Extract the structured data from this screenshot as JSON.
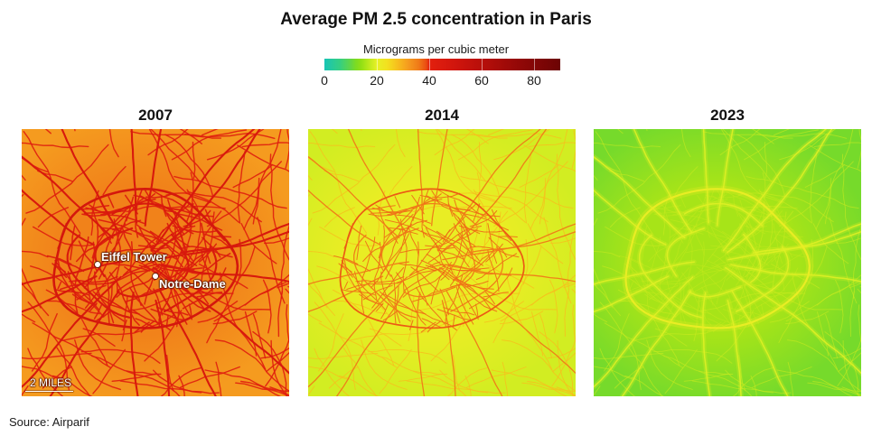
{
  "title": "Average PM 2.5 concentration in Paris",
  "legend": {
    "label": "Micrograms per cubic meter",
    "range": [
      0,
      90
    ],
    "ticks": [
      {
        "value": 0,
        "label": "0"
      },
      {
        "value": 20,
        "label": "20"
      },
      {
        "value": 40,
        "label": "40"
      },
      {
        "value": 60,
        "label": "60"
      },
      {
        "value": 80,
        "label": "80"
      }
    ],
    "color_stops": [
      {
        "value": 0,
        "color": "#18c4b6"
      },
      {
        "value": 6,
        "color": "#36cf80"
      },
      {
        "value": 10,
        "color": "#62d646"
      },
      {
        "value": 12,
        "color": "#7cdb22"
      },
      {
        "value": 14,
        "color": "#92df14"
      },
      {
        "value": 16,
        "color": "#aee619"
      },
      {
        "value": 18,
        "color": "#cbeb20"
      },
      {
        "value": 20,
        "color": "#e6f126"
      },
      {
        "value": 24,
        "color": "#f3e01f"
      },
      {
        "value": 28,
        "color": "#f7be1d"
      },
      {
        "value": 32,
        "color": "#f59b1f"
      },
      {
        "value": 36,
        "color": "#f07a18"
      },
      {
        "value": 39,
        "color": "#ea4a12"
      },
      {
        "value": 40,
        "color": "#e3200e"
      },
      {
        "value": 50,
        "color": "#d0150d"
      },
      {
        "value": 60,
        "color": "#b80f0a"
      },
      {
        "value": 70,
        "color": "#9e0a08"
      },
      {
        "value": 80,
        "color": "#840606"
      },
      {
        "value": 90,
        "color": "#6c0404"
      }
    ]
  },
  "panels": [
    {
      "year": "2007",
      "levels": {
        "outer_background": 32,
        "central_background": 35,
        "ring_road": 48,
        "main_roads": 46,
        "city_streets": 44,
        "outer_streets": 42
      },
      "annotations": [
        {
          "label": "Eiffel Tower"
        },
        {
          "label": "Notre-Dame"
        }
      ],
      "scale_bar": "2 MILES"
    },
    {
      "year": "2014",
      "levels": {
        "outer_background": 18.5,
        "central_background": 21,
        "ring_road": 38,
        "main_roads": 36,
        "city_streets": 37,
        "outer_streets": 28
      }
    },
    {
      "year": "2023",
      "levels": {
        "outer_background": 11.5,
        "central_background": 15.5,
        "ring_road": 21,
        "main_roads": 19.5,
        "city_streets": 17.5,
        "outer_streets": 18
      }
    }
  ],
  "source": "Source: Airparif"
}
